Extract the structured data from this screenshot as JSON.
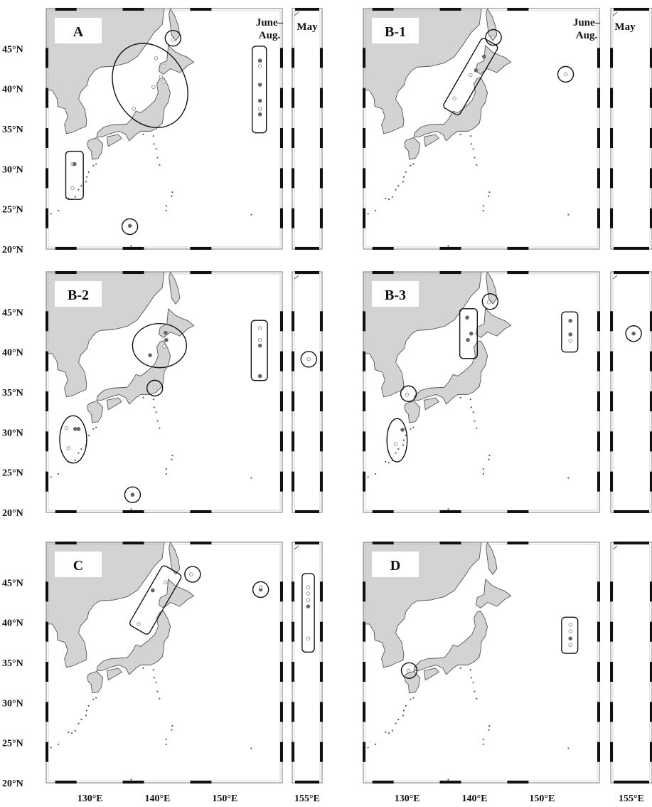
{
  "colors": {
    "land": "#d3d3d3",
    "coast": "#555555",
    "sea": "#ffffff",
    "frame": "#777777",
    "filled_point": "#666666",
    "open_point": "#999999"
  },
  "axes": {
    "lat_labels": [
      "45°N",
      "40°N",
      "35°N",
      "30°N",
      "25°N",
      "20°N"
    ],
    "lon_labels_main": [
      "130°E",
      "140°E",
      "150°E"
    ],
    "lon_label_inset": "155°E"
  },
  "season_labels": {
    "summer": "June–\nAug.",
    "spring": "May"
  },
  "panels": [
    {
      "id": "A",
      "label": "A",
      "show_june_label": true,
      "show_may_label": true,
      "circles": [
        {
          "lon": 142.3,
          "lat": 46.3,
          "type": "circle"
        },
        {
          "lon": 135.9,
          "lat": 22.8,
          "type": "circle"
        }
      ],
      "ellipses": [
        {
          "lon": 138.9,
          "lat": 40.4,
          "w": 10.5,
          "h": 11,
          "rot": -30
        }
      ],
      "rects": [
        {
          "lon": 155.1,
          "lat": 39.9,
          "w": 2.1,
          "h": 10.8
        },
        {
          "lon": 127.7,
          "lat": 29.2,
          "w": 2.6,
          "h": 6
        }
      ],
      "points": [
        [
          155.2,
          43.5,
          1
        ],
        [
          155.2,
          42.8,
          0
        ],
        [
          155.2,
          40.5,
          1
        ],
        [
          155.2,
          38.5,
          1
        ],
        [
          155.2,
          37.5,
          0
        ],
        [
          155.2,
          36.8,
          1
        ],
        [
          139.8,
          43.8,
          0
        ],
        [
          140.9,
          42.8,
          0
        ],
        [
          140.5,
          41.5,
          0
        ],
        [
          140.9,
          40.9,
          0
        ],
        [
          139.4,
          40.2,
          0
        ],
        [
          136.5,
          37.5,
          0
        ],
        [
          127.4,
          30.6,
          0
        ],
        [
          127.7,
          30.6,
          1
        ],
        [
          127.4,
          27.6,
          0
        ],
        [
          135.9,
          22.9,
          1
        ],
        [
          142.3,
          46.1,
          0
        ]
      ],
      "may": {
        "rects": [],
        "circles": [],
        "points": []
      }
    },
    {
      "id": "B-1",
      "label": "B-1",
      "show_june_label": true,
      "show_may_label": true,
      "circles": [
        {
          "lon": 142.8,
          "lat": 46.4,
          "type": "circle"
        },
        {
          "lon": 153.5,
          "lat": 41.8,
          "type": "circle"
        }
      ],
      "ellipses": [],
      "rects": [
        {
          "lon": 139.4,
          "lat": 41.5,
          "w": 2.8,
          "h": 10,
          "rot": 30
        }
      ],
      "points": [
        [
          142.7,
          46.4,
          0
        ],
        [
          141.4,
          44.0,
          1
        ],
        [
          140.2,
          42.3,
          1
        ],
        [
          139.4,
          41.7,
          0
        ],
        [
          137.0,
          38.8,
          0
        ],
        [
          153.5,
          41.8,
          0
        ]
      ],
      "may": {
        "rects": [],
        "circles": [],
        "points": []
      }
    },
    {
      "id": "B-2",
      "label": "B-2",
      "show_june_label": false,
      "show_may_label": false,
      "circles": [
        {
          "lon": 136.3,
          "lat": 22.2,
          "type": "circle"
        },
        {
          "lon": 139.6,
          "lat": 35.5,
          "type": "circle"
        }
      ],
      "ellipses": [
        {
          "lon": 140.3,
          "lat": 40.8,
          "w": 8,
          "h": 5.5,
          "rot": 0
        },
        {
          "lon": 127.5,
          "lat": 29.1,
          "w": 4,
          "h": 5.9,
          "rot": 0
        }
      ],
      "rects": [
        {
          "lon": 155.1,
          "lat": 40.2,
          "w": 2.4,
          "h": 7.5
        }
      ],
      "points": [
        [
          155.2,
          43.0,
          0
        ],
        [
          155.2,
          41.5,
          0
        ],
        [
          155.2,
          40.8,
          1
        ],
        [
          155.2,
          37.0,
          1
        ],
        [
          141.3,
          41.5,
          1
        ],
        [
          141.2,
          42.4,
          1
        ],
        [
          138.9,
          39.6,
          1
        ],
        [
          141.0,
          40.7,
          0
        ],
        [
          139.6,
          35.6,
          0
        ],
        [
          126.5,
          30.5,
          0
        ],
        [
          127.8,
          30.4,
          1
        ],
        [
          128.3,
          30.4,
          1
        ],
        [
          126.8,
          28.0,
          0
        ],
        [
          136.3,
          22.2,
          1
        ]
      ],
      "may": {
        "rects": [],
        "circles": [
          {
            "lon": 155.3,
            "lat": 39.1
          }
        ],
        "points": [
          [
            155.3,
            39.1,
            0
          ]
        ]
      }
    },
    {
      "id": "B-3",
      "label": "B-3",
      "show_june_label": false,
      "show_may_label": false,
      "circles": [
        {
          "lon": 142.3,
          "lat": 46.3,
          "type": "circle"
        },
        {
          "lon": 130.2,
          "lat": 34.8,
          "type": "circle"
        }
      ],
      "ellipses": [
        {
          "lon": 128.5,
          "lat": 29.0,
          "w": 3,
          "h": 5.4,
          "rot": 0
        }
      ],
      "rects": [
        {
          "lon": 139.1,
          "lat": 42.3,
          "w": 2.6,
          "h": 6.2
        },
        {
          "lon": 154.1,
          "lat": 42.5,
          "w": 2.4,
          "h": 5
        }
      ],
      "points": [
        [
          154.2,
          43.9,
          1
        ],
        [
          154.2,
          42.2,
          1
        ],
        [
          154.2,
          41.4,
          0
        ],
        [
          138.9,
          44.3,
          1
        ],
        [
          139.5,
          42.3,
          1
        ],
        [
          139.0,
          41.5,
          1
        ],
        [
          142.1,
          46.2,
          0
        ],
        [
          130.0,
          34.7,
          0
        ],
        [
          129.3,
          30.3,
          1
        ],
        [
          128.3,
          28.5,
          0
        ]
      ],
      "may": {
        "rects": [],
        "circles": [
          {
            "lon": 155.3,
            "lat": 42.3
          }
        ],
        "points": [
          [
            155.3,
            42.3,
            1
          ]
        ]
      }
    },
    {
      "id": "C",
      "label": "C",
      "show_june_label": false,
      "show_may_label": false,
      "circles": [
        {
          "lon": 145.2,
          "lat": 46.0,
          "type": "circle"
        },
        {
          "lon": 155.3,
          "lat": 44.1,
          "type": "circle"
        }
      ],
      "ellipses": [],
      "rects": [
        {
          "lon": 139.7,
          "lat": 42.8,
          "w": 3.3,
          "h": 8.6,
          "rot": 30
        }
      ],
      "points": [
        [
          145.0,
          46.0,
          0
        ],
        [
          155.3,
          44.1,
          1
        ],
        [
          155.3,
          44.4,
          0
        ],
        [
          139.3,
          44.0,
          1
        ],
        [
          141.2,
          45.0,
          0
        ],
        [
          137.2,
          39.8,
          0
        ]
      ],
      "may": {
        "rects": [
          {
            "lon": 155.2,
            "lat": 41.2,
            "w": 2.3,
            "h": 9.8
          }
        ],
        "circles": [],
        "points": [
          [
            155.2,
            44.4,
            0
          ],
          [
            155.2,
            43.6,
            0
          ],
          [
            155.2,
            42.8,
            0
          ],
          [
            155.2,
            42.0,
            1
          ],
          [
            155.2,
            38.0,
            0
          ]
        ]
      }
    },
    {
      "id": "D",
      "label": "D",
      "show_june_label": false,
      "show_may_label": false,
      "circles": [
        {
          "lon": 130.3,
          "lat": 34.0,
          "type": "circle"
        }
      ],
      "ellipses": [],
      "rects": [
        {
          "lon": 154.1,
          "lat": 38.4,
          "w": 2.4,
          "h": 4.5
        }
      ],
      "points": [
        [
          154.2,
          39.7,
          0
        ],
        [
          154.2,
          38.9,
          0
        ],
        [
          154.2,
          38.0,
          1
        ],
        [
          154.2,
          37.2,
          0
        ],
        [
          130.2,
          34.0,
          0
        ]
      ],
      "may": {
        "rects": [],
        "circles": [],
        "points": []
      }
    }
  ]
}
